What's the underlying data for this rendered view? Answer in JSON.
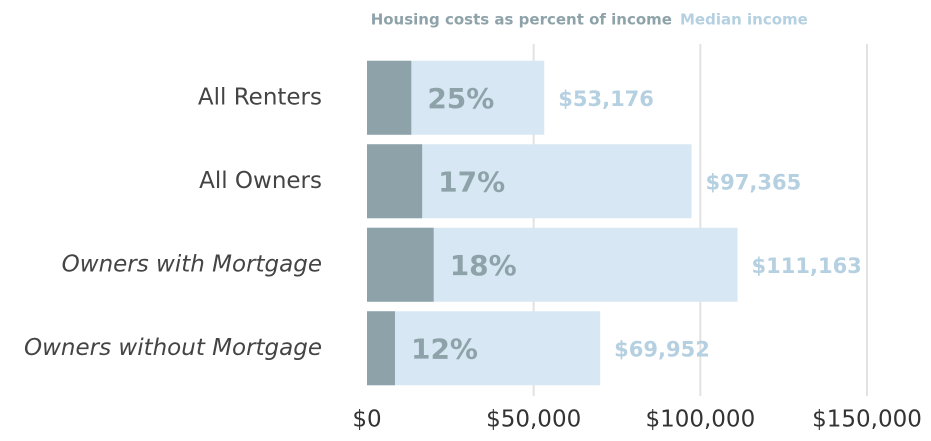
{
  "chart_data": {
    "type": "overlay-bar",
    "legend": [
      "Housing costs as percent of income",
      "Median income"
    ],
    "categories": [
      "All Renters",
      "All Owners",
      "Owners with Mortgage",
      "Owners without Mortgage"
    ],
    "category_style": [
      "normal",
      "normal",
      "italic",
      "italic"
    ],
    "series": [
      {
        "name": "Housing costs as percent of income",
        "color": "#8ea3a9",
        "values": [
          25,
          17,
          18,
          12
        ],
        "value_labels": [
          "25%",
          "17%",
          "18%",
          "12%"
        ]
      },
      {
        "name": "Median income",
        "color": "#d7e8f4",
        "label_color": "#b5d0e1",
        "values": [
          53176,
          97365,
          111163,
          69952
        ],
        "value_labels": [
          "$53,176",
          "$97,365",
          "$111,163",
          "$69,952"
        ]
      }
    ],
    "xlim": [
      0,
      150000
    ],
    "xticks": [
      {
        "value": 0,
        "label": "$0"
      },
      {
        "value": 50000,
        "label": "$50,000"
      },
      {
        "value": 100000,
        "label": "$100,000"
      },
      {
        "value": 150000,
        "label": "$150,000"
      }
    ],
    "grid": true
  }
}
